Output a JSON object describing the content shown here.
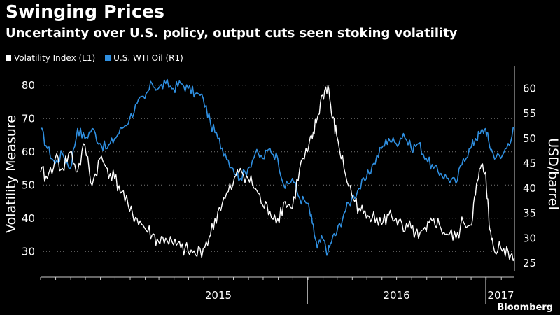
{
  "chart_data": {
    "type": "line",
    "title": "Swinging Prices",
    "subtitle": "Uncertainty over U.S. policy, output cuts seen stoking volatility",
    "ylabel_left": "Volatility Measure",
    "ylabel_right": "USD/barrel",
    "ylim_left": [
      25,
      85
    ],
    "ylim_right": [
      24,
      64
    ],
    "yticks_left": [
      30,
      40,
      50,
      60,
      70,
      80
    ],
    "yticks_right": [
      25,
      30,
      35,
      40,
      45,
      50,
      55,
      60
    ],
    "xlim": [
      "2014-07-01",
      "2017-02-28"
    ],
    "year_labels": [
      {
        "label": "2015",
        "date": "2015-07-01"
      },
      {
        "label": "2016",
        "date": "2016-07-01"
      },
      {
        "label": "2017",
        "date": "2017-01-31"
      }
    ],
    "year_boundaries": [
      "2015-12-31",
      "2016-12-31"
    ],
    "legend_position": "top-left",
    "series": [
      {
        "name": "Volatility Index (L1)",
        "axis": "left",
        "color": "#ffffff",
        "points": [
          [
            "2014-07-01",
            54
          ],
          [
            "2014-07-15",
            52
          ],
          [
            "2014-07-31",
            58
          ],
          [
            "2014-08-15",
            55
          ],
          [
            "2014-08-31",
            60
          ],
          [
            "2014-09-15",
            54
          ],
          [
            "2014-09-30",
            62
          ],
          [
            "2014-10-15",
            50
          ],
          [
            "2014-10-31",
            58
          ],
          [
            "2014-11-15",
            55
          ],
          [
            "2014-11-30",
            52
          ],
          [
            "2014-12-15",
            48
          ],
          [
            "2014-12-31",
            42
          ],
          [
            "2015-01-15",
            40
          ],
          [
            "2015-01-31",
            37
          ],
          [
            "2015-02-15",
            35
          ],
          [
            "2015-02-28",
            33
          ],
          [
            "2015-03-15",
            34
          ],
          [
            "2015-03-31",
            32
          ],
          [
            "2015-04-15",
            31
          ],
          [
            "2015-04-30",
            30
          ],
          [
            "2015-05-15",
            29
          ],
          [
            "2015-05-31",
            31
          ],
          [
            "2015-06-15",
            35
          ],
          [
            "2015-06-30",
            42
          ],
          [
            "2015-07-15",
            46
          ],
          [
            "2015-07-31",
            50
          ],
          [
            "2015-08-15",
            55
          ],
          [
            "2015-08-31",
            52
          ],
          [
            "2015-09-15",
            49
          ],
          [
            "2015-09-30",
            44
          ],
          [
            "2015-10-15",
            42
          ],
          [
            "2015-10-31",
            40
          ],
          [
            "2015-11-15",
            45
          ],
          [
            "2015-11-30",
            43
          ],
          [
            "2015-12-15",
            55
          ],
          [
            "2015-12-31",
            60
          ],
          [
            "2016-01-10",
            64
          ],
          [
            "2016-01-20",
            70
          ],
          [
            "2016-01-31",
            77
          ],
          [
            "2016-02-11",
            80
          ],
          [
            "2016-02-20",
            70
          ],
          [
            "2016-02-29",
            65
          ],
          [
            "2016-03-15",
            55
          ],
          [
            "2016-03-31",
            47
          ],
          [
            "2016-04-15",
            43
          ],
          [
            "2016-04-30",
            40
          ],
          [
            "2016-05-15",
            42
          ],
          [
            "2016-05-31",
            38
          ],
          [
            "2016-06-15",
            41
          ],
          [
            "2016-06-30",
            40
          ],
          [
            "2016-07-15",
            36
          ],
          [
            "2016-07-31",
            37
          ],
          [
            "2016-08-15",
            34
          ],
          [
            "2016-08-31",
            36
          ],
          [
            "2016-09-15",
            40
          ],
          [
            "2016-09-30",
            37
          ],
          [
            "2016-10-15",
            35
          ],
          [
            "2016-10-31",
            34
          ],
          [
            "2016-11-15",
            39
          ],
          [
            "2016-11-30",
            38
          ],
          [
            "2016-12-10",
            47
          ],
          [
            "2016-12-20",
            55
          ],
          [
            "2016-12-31",
            54
          ],
          [
            "2017-01-07",
            38
          ],
          [
            "2017-01-15",
            32
          ],
          [
            "2017-01-31",
            31
          ],
          [
            "2017-02-15",
            30
          ],
          [
            "2017-02-28",
            28
          ]
        ]
      },
      {
        "name": "U.S. WTI Oil (R1)",
        "axis": "right",
        "color": "#2f8fe0",
        "points": [
          [
            "2014-07-01",
            52
          ],
          [
            "2014-07-15",
            48
          ],
          [
            "2014-07-31",
            45
          ],
          [
            "2014-08-15",
            47
          ],
          [
            "2014-08-31",
            44
          ],
          [
            "2014-09-15",
            52
          ],
          [
            "2014-09-30",
            50
          ],
          [
            "2014-10-15",
            52
          ],
          [
            "2014-10-31",
            49
          ],
          [
            "2014-11-15",
            48
          ],
          [
            "2014-11-30",
            50
          ],
          [
            "2014-12-15",
            52
          ],
          [
            "2014-12-31",
            54
          ],
          [
            "2015-01-15",
            57
          ],
          [
            "2015-01-31",
            58
          ],
          [
            "2015-02-15",
            61
          ],
          [
            "2015-02-28",
            60
          ],
          [
            "2015-03-15",
            61
          ],
          [
            "2015-03-31",
            60
          ],
          [
            "2015-04-15",
            61
          ],
          [
            "2015-04-30",
            60
          ],
          [
            "2015-05-15",
            59
          ],
          [
            "2015-05-31",
            58
          ],
          [
            "2015-06-15",
            53
          ],
          [
            "2015-06-30",
            50
          ],
          [
            "2015-07-15",
            47
          ],
          [
            "2015-07-31",
            44
          ],
          [
            "2015-08-15",
            42
          ],
          [
            "2015-08-31",
            44
          ],
          [
            "2015-09-15",
            47
          ],
          [
            "2015-09-30",
            46
          ],
          [
            "2015-10-15",
            48
          ],
          [
            "2015-10-31",
            46
          ],
          [
            "2015-11-15",
            40
          ],
          [
            "2015-11-30",
            42
          ],
          [
            "2015-12-15",
            38
          ],
          [
            "2015-12-31",
            37
          ],
          [
            "2016-01-10",
            33
          ],
          [
            "2016-01-20",
            28
          ],
          [
            "2016-01-31",
            30
          ],
          [
            "2016-02-11",
            27
          ],
          [
            "2016-02-20",
            30
          ],
          [
            "2016-02-29",
            31
          ],
          [
            "2016-03-15",
            35
          ],
          [
            "2016-03-31",
            38
          ],
          [
            "2016-04-15",
            40
          ],
          [
            "2016-04-30",
            42
          ],
          [
            "2016-05-15",
            45
          ],
          [
            "2016-05-31",
            48
          ],
          [
            "2016-06-15",
            50
          ],
          [
            "2016-06-30",
            49
          ],
          [
            "2016-07-15",
            51
          ],
          [
            "2016-07-31",
            48
          ],
          [
            "2016-08-15",
            49
          ],
          [
            "2016-08-31",
            46
          ],
          [
            "2016-09-15",
            44
          ],
          [
            "2016-09-30",
            43
          ],
          [
            "2016-10-15",
            42
          ],
          [
            "2016-10-31",
            41
          ],
          [
            "2016-11-15",
            46
          ],
          [
            "2016-11-30",
            48
          ],
          [
            "2016-12-10",
            50
          ],
          [
            "2016-12-20",
            51
          ],
          [
            "2016-12-31",
            52
          ],
          [
            "2017-01-07",
            49
          ],
          [
            "2017-01-15",
            47
          ],
          [
            "2017-01-31",
            46
          ],
          [
            "2017-02-15",
            49
          ],
          [
            "2017-02-28",
            52
          ]
        ]
      }
    ]
  },
  "source": "Bloomberg"
}
